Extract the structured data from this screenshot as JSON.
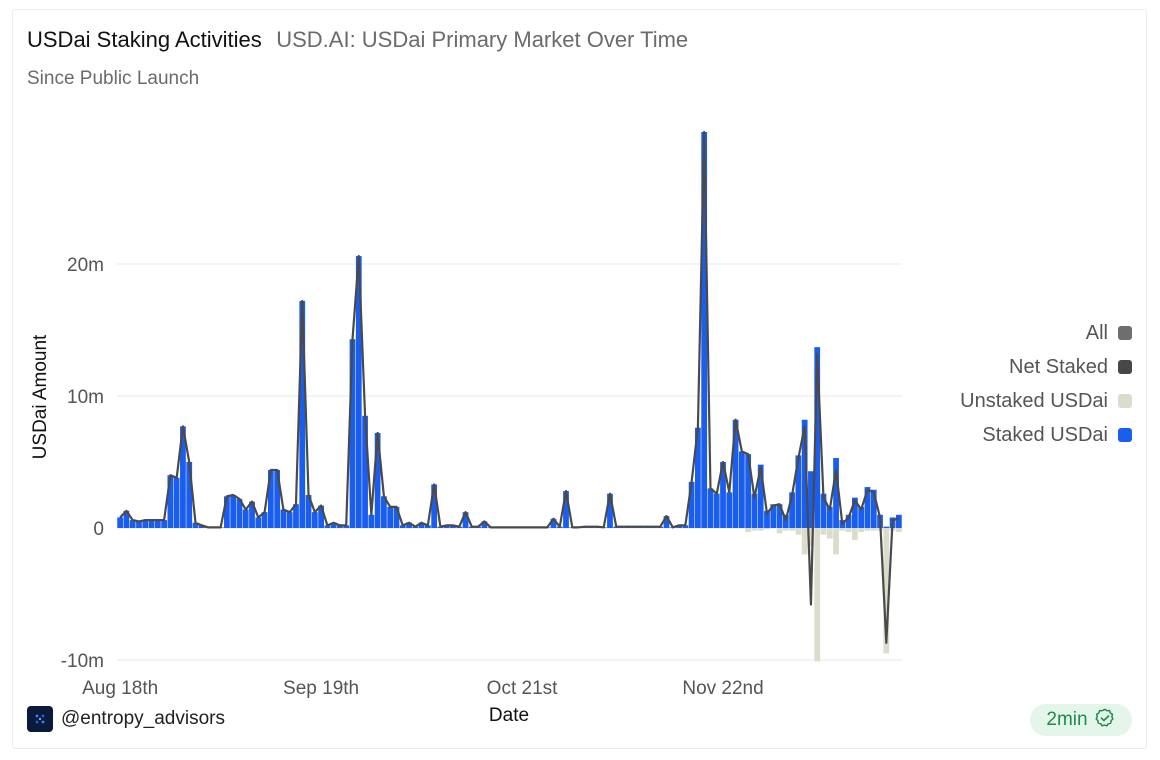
{
  "header": {
    "title": "USDai Staking Activities",
    "subtitle": "USD.AI: USDai Primary Market Over Time",
    "caption": "Since Public Launch"
  },
  "footer": {
    "author": "@entropy_advisors",
    "freshness": "2min"
  },
  "colors": {
    "staked": "#1a5ef0",
    "unstaked": "#dcdccd",
    "net": "#4a4a4a",
    "all": "#6e6e6e",
    "badge_text": "#1e8a4c"
  },
  "legend": [
    {
      "label": "All",
      "color": "#6e6e6e",
      "icon": "square-swatch"
    },
    {
      "label": "Net Staked",
      "color": "#474747",
      "icon": "square-swatch"
    },
    {
      "label": "Unstaked USDai",
      "color": "#dcdccd",
      "icon": "square-swatch"
    },
    {
      "label": "Staked USDai",
      "color": "#1a5ef0",
      "icon": "square-swatch"
    }
  ],
  "chart_data": {
    "type": "bar",
    "xlabel": "Date",
    "ylabel": "USDai Amount",
    "ylim": [
      -10,
      30
    ],
    "y_unit": "m",
    "yticks": [
      -10,
      0,
      10,
      20
    ],
    "ytick_labels": [
      "-10m",
      "0",
      "10m",
      "20m"
    ],
    "xtick_labels": [
      "Aug 18th",
      "Sep 19th",
      "Oct 21st",
      "Nov 22nd"
    ],
    "xtick_index": [
      0,
      32,
      64,
      96
    ],
    "grid": true,
    "legend_position": "right",
    "stacked": true,
    "series": [
      {
        "name": "Staked USDai",
        "type": "bar",
        "values": [
          0.8,
          1.3,
          0.6,
          0.5,
          0.6,
          0.6,
          0.6,
          0.6,
          4.0,
          3.8,
          7.7,
          5.0,
          0.4,
          0.2,
          0.05,
          0.05,
          0.05,
          2.4,
          2.5,
          2.2,
          1.4,
          2.0,
          0.8,
          1.2,
          4.4,
          4.4,
          1.4,
          1.2,
          1.8,
          17.2,
          2.5,
          1.2,
          1.7,
          0.2,
          0.4,
          0.2,
          0.2,
          14.3,
          20.6,
          8.5,
          1.0,
          7.2,
          2.4,
          1.6,
          1.6,
          0.2,
          0.4,
          0.1,
          0.4,
          0.2,
          3.3,
          0.1,
          0.2,
          0.2,
          0.1,
          1.2,
          0.1,
          0.1,
          0.5,
          0.05,
          0.05,
          0.05,
          0.05,
          0.05,
          0.05,
          0.05,
          0.05,
          0.05,
          0.05,
          0.7,
          0.1,
          2.8,
          0.05,
          0.05,
          0.1,
          0.1,
          0.1,
          0.05,
          2.6,
          0.1,
          0.1,
          0.1,
          0.1,
          0.1,
          0.1,
          0.1,
          0.1,
          0.9,
          0.05,
          0.2,
          0.2,
          3.5,
          7.6,
          30.0,
          3.0,
          2.6,
          5.0,
          2.7,
          8.2,
          5.8,
          5.6,
          2.6,
          4.8,
          1.3,
          1.8,
          1.8,
          1.0,
          2.7,
          5.5,
          8.2,
          4.3,
          13.7,
          2.6,
          1.6,
          5.3,
          0.6,
          1.0,
          2.3,
          1.6,
          3.1,
          2.9,
          1.0,
          0.1,
          0.8,
          1.0
        ],
        "unit": "m"
      },
      {
        "name": "Unstaked USDai",
        "type": "bar",
        "values": [
          0,
          0,
          0,
          0,
          0,
          0,
          0,
          0,
          0,
          0,
          0,
          0,
          0,
          0,
          0,
          0,
          0,
          0,
          0,
          0,
          0,
          0,
          0,
          0,
          0,
          0,
          0,
          0,
          0,
          0,
          0,
          0,
          0,
          0,
          0,
          0,
          0,
          0,
          0,
          0,
          0,
          0,
          0,
          0,
          0,
          0,
          0,
          0,
          0,
          0,
          0,
          0,
          0,
          0,
          0,
          0,
          0,
          0,
          0,
          0,
          0,
          0,
          0,
          0,
          0,
          0,
          0,
          0,
          0,
          0,
          0,
          0,
          0,
          0,
          0,
          0,
          0,
          0,
          0,
          0,
          0,
          0,
          0,
          0,
          0,
          0,
          0,
          0,
          0,
          0,
          0,
          0,
          0,
          0,
          0,
          0,
          0,
          0,
          0,
          0,
          -0.3,
          -0.2,
          -0.2,
          -0.1,
          0,
          -0.4,
          -0.2,
          -0.2,
          -0.5,
          -2.0,
          -1.4,
          -10.1,
          -0.5,
          -0.8,
          -2.0,
          -0.2,
          -0.3,
          -0.9,
          -0.3,
          -0.2,
          -0.2,
          -0.2,
          -9.5,
          -0.2,
          -0.3
        ],
        "unit": "m"
      },
      {
        "name": "Net Staked",
        "type": "line",
        "values": [
          0.8,
          1.3,
          0.6,
          0.5,
          0.6,
          0.6,
          0.6,
          0.6,
          4.0,
          3.8,
          7.7,
          5.0,
          0.4,
          0.2,
          0.05,
          0.05,
          0.05,
          2.4,
          2.5,
          2.2,
          1.4,
          2.0,
          0.8,
          1.2,
          4.4,
          4.4,
          1.4,
          1.2,
          1.8,
          17.2,
          2.5,
          1.2,
          1.7,
          0.2,
          0.4,
          0.2,
          0.2,
          14.3,
          20.6,
          8.5,
          1.0,
          7.2,
          2.4,
          1.6,
          1.6,
          0.2,
          0.4,
          0.1,
          0.4,
          0.2,
          3.3,
          0.1,
          0.2,
          0.2,
          0.1,
          1.2,
          0.1,
          0.1,
          0.5,
          0.05,
          0.05,
          0.05,
          0.05,
          0.05,
          0.05,
          0.05,
          0.05,
          0.05,
          0.05,
          0.7,
          0.1,
          2.8,
          0.05,
          0.05,
          0.1,
          0.1,
          0.1,
          0.05,
          2.6,
          0.1,
          0.1,
          0.1,
          0.1,
          0.1,
          0.1,
          0.1,
          0.1,
          0.9,
          0.05,
          0.2,
          0.2,
          3.5,
          7.6,
          30.0,
          3.0,
          2.6,
          5.0,
          2.7,
          8.2,
          5.8,
          5.6,
          2.3,
          4.6,
          1.1,
          1.7,
          1.8,
          0.6,
          2.5,
          5.3,
          7.7,
          -5.8,
          13.2,
          2.3,
          1.4,
          4.4,
          0.3,
          0.8,
          2.1,
          1.4,
          2.9,
          2.7,
          0.8,
          -8.7,
          0.6,
          0.7
        ],
        "unit": "m"
      }
    ]
  }
}
